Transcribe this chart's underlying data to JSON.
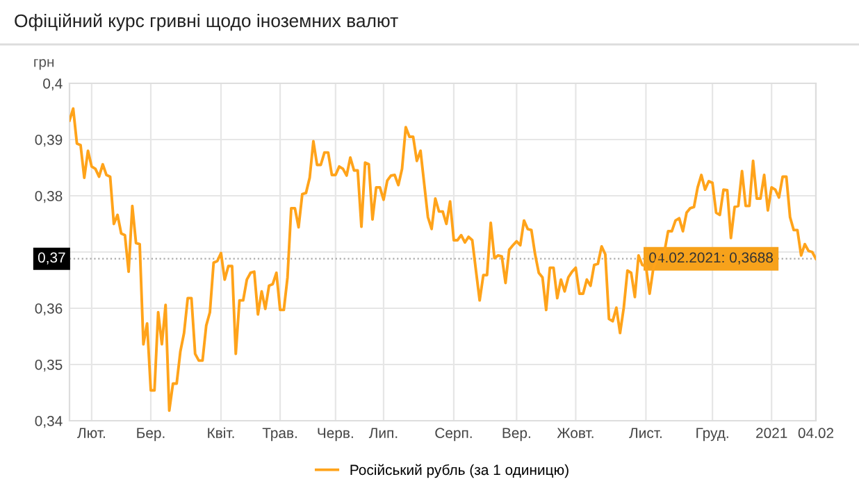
{
  "chart_data": {
    "type": "line",
    "title": "Офіційний курс гривні щодо іноземних валют",
    "ylabel": "грн",
    "categories": [
      null,
      null,
      null,
      null,
      null,
      null,
      "Лют.",
      null,
      null,
      null,
      null,
      null,
      null,
      null,
      null,
      null,
      null,
      null,
      null,
      null,
      null,
      null,
      "Бер.",
      null,
      null,
      null,
      null,
      null,
      null,
      null,
      null,
      null,
      null,
      null,
      null,
      null,
      null,
      null,
      null,
      null,
      null,
      "Квіт.",
      null,
      null,
      null,
      null,
      null,
      null,
      null,
      null,
      null,
      null,
      null,
      null,
      null,
      null,
      null,
      "Трав.",
      null,
      null,
      null,
      null,
      null,
      null,
      null,
      null,
      null,
      null,
      null,
      null,
      null,
      null,
      "Черв.",
      null,
      null,
      null,
      null,
      null,
      null,
      null,
      null,
      null,
      null,
      null,
      null,
      "Лип.",
      null,
      null,
      null,
      null,
      null,
      null,
      null,
      null,
      null,
      null,
      null,
      null,
      null,
      null,
      null,
      null,
      null,
      null,
      "Серп.",
      null,
      null,
      null,
      null,
      null,
      null,
      null,
      null,
      null,
      null,
      null,
      null,
      null,
      null,
      null,
      null,
      "Вер.",
      null,
      null,
      null,
      null,
      null,
      null,
      null,
      null,
      null,
      null,
      null,
      null,
      null,
      null,
      null,
      "Жовт.",
      null,
      null,
      null,
      null,
      null,
      null,
      null,
      null,
      null,
      null,
      null,
      null,
      null,
      null,
      null,
      null,
      null,
      null,
      "Лист.",
      null,
      null,
      null,
      null,
      null,
      null,
      null,
      null,
      null,
      null,
      null,
      null,
      null,
      null,
      null,
      null,
      null,
      "Груд.",
      null,
      null,
      null,
      null,
      null,
      null,
      null,
      null,
      null,
      null,
      null,
      null,
      null,
      null,
      null,
      "2021",
      null,
      null,
      null,
      null,
      null,
      null,
      null,
      null,
      null,
      null,
      null,
      "04.02"
    ],
    "series": [
      {
        "name": "Російський рубль (за 1 одиницю)",
        "color": "#ffa31a",
        "values": [
          0.3934,
          0.3955,
          0.3893,
          0.389,
          0.3832,
          0.388,
          0.3852,
          0.3848,
          0.3834,
          0.3856,
          0.3837,
          0.3834,
          0.375,
          0.3766,
          0.3733,
          0.373,
          0.3665,
          0.3782,
          0.3716,
          0.3714,
          0.3536,
          0.3573,
          0.3454,
          0.3454,
          0.3593,
          0.3536,
          0.3606,
          0.3418,
          0.3466,
          0.3466,
          0.3523,
          0.3556,
          0.3618,
          0.3618,
          0.3519,
          0.3507,
          0.3507,
          0.3569,
          0.3593,
          0.3681,
          0.3684,
          0.3698,
          0.3651,
          0.3675,
          0.3675,
          0.3519,
          0.3614,
          0.3614,
          0.3651,
          0.3663,
          0.3665,
          0.3589,
          0.363,
          0.3599,
          0.364,
          0.3643,
          0.3663,
          0.3597,
          0.3597,
          0.3655,
          0.3778,
          0.3778,
          0.3744,
          0.3803,
          0.3805,
          0.3832,
          0.3897,
          0.3855,
          0.3855,
          0.3877,
          0.3877,
          0.3837,
          0.3837,
          0.3852,
          0.3848,
          0.3836,
          0.3868,
          0.3845,
          0.3845,
          0.3745,
          0.3859,
          0.3856,
          0.3758,
          0.3815,
          0.3815,
          0.3793,
          0.3827,
          0.3836,
          0.3837,
          0.3819,
          0.3848,
          0.3922,
          0.3905,
          0.3905,
          0.3862,
          0.388,
          0.3821,
          0.3762,
          0.3741,
          0.3795,
          0.3772,
          0.3772,
          0.375,
          0.379,
          0.3721,
          0.3721,
          0.373,
          0.3717,
          0.3727,
          0.3721,
          0.3667,
          0.3614,
          0.3659,
          0.3659,
          0.3752,
          0.3689,
          0.3694,
          0.3692,
          0.3645,
          0.3704,
          0.3712,
          0.3719,
          0.3712,
          0.3756,
          0.3741,
          0.3739,
          0.3696,
          0.3663,
          0.3655,
          0.3597,
          0.3672,
          0.3672,
          0.3618,
          0.3651,
          0.363,
          0.3655,
          0.3665,
          0.3672,
          0.3626,
          0.3626,
          0.3651,
          0.364,
          0.3677,
          0.3679,
          0.371,
          0.3696,
          0.3581,
          0.3577,
          0.3601,
          0.3556,
          0.3601,
          0.3667,
          0.3663,
          0.362,
          0.3694,
          0.3677,
          0.3675,
          0.3626,
          0.3671,
          0.3688,
          0.37,
          0.37,
          0.3737,
          0.3737,
          0.3756,
          0.376,
          0.3737,
          0.377,
          0.3778,
          0.378,
          0.3815,
          0.3837,
          0.3811,
          0.3826,
          0.3823,
          0.377,
          0.3766,
          0.3811,
          0.381,
          0.3725,
          0.378,
          0.3782,
          0.3844,
          0.3782,
          0.3782,
          0.3862,
          0.3795,
          0.3795,
          0.3837,
          0.3774,
          0.3815,
          0.3811,
          0.3797,
          0.3834,
          0.3834,
          0.3762,
          0.3739,
          0.3739,
          0.3694,
          0.3714,
          0.3702,
          0.37,
          0.3688
        ]
      }
    ],
    "ylim": [
      0.34,
      0.4
    ],
    "yticks": [
      {
        "value": 0.34,
        "label": "0,34"
      },
      {
        "value": 0.35,
        "label": "0,35"
      },
      {
        "value": 0.36,
        "label": "0,36"
      },
      {
        "value": 0.37,
        "label": null
      },
      {
        "value": 0.38,
        "label": "0,38"
      },
      {
        "value": 0.39,
        "label": "0,39"
      },
      {
        "value": 0.4,
        "label": "0,4"
      }
    ],
    "ref_lines": [
      {
        "axis": "y",
        "value": 0.3688,
        "label": "0,37",
        "color": "#aaaaaa",
        "line_style": "dotted"
      }
    ],
    "annotations": [
      {
        "text": "04.02.2021: 0,3688",
        "x": "04.02",
        "y": 0.3688
      }
    ],
    "grid": true,
    "legend": "bottom",
    "marker": "none",
    "line_style": "solid"
  }
}
